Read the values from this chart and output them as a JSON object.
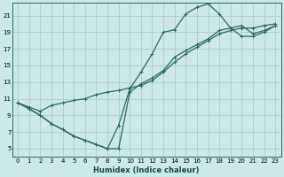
{
  "xlabel": "Humidex (Indice chaleur)",
  "bg_color": "#cce8e8",
  "grid_color": "#aacece",
  "line_color": "#2a6a5a",
  "xlim": [
    -0.5,
    23.5
  ],
  "ylim": [
    4.0,
    22.5
  ],
  "xticks": [
    0,
    1,
    2,
    3,
    4,
    5,
    6,
    7,
    8,
    9,
    10,
    11,
    12,
    13,
    14,
    15,
    16,
    17,
    18,
    19,
    20,
    21,
    22,
    23
  ],
  "yticks": [
    5,
    7,
    9,
    11,
    13,
    15,
    17,
    19,
    21
  ],
  "line1_x": [
    0,
    1,
    2,
    3,
    4,
    5,
    6,
    7,
    8,
    9,
    10,
    11,
    12,
    13,
    14,
    15,
    16,
    17,
    18,
    19,
    20,
    21,
    22,
    23
  ],
  "line1_y": [
    10.5,
    9.8,
    9.0,
    8.0,
    7.3,
    6.5,
    6.0,
    5.5,
    5.0,
    7.8,
    12.2,
    14.2,
    16.4,
    19.0,
    19.3,
    21.2,
    22.0,
    22.4,
    21.2,
    19.5,
    18.5,
    18.5,
    19.0,
    19.8
  ],
  "line2_x": [
    0,
    1,
    2,
    3,
    4,
    5,
    6,
    7,
    8,
    9,
    10,
    11,
    12,
    13,
    14,
    15,
    16,
    17,
    18,
    19,
    20,
    21,
    22,
    23
  ],
  "line2_y": [
    10.5,
    9.8,
    9.0,
    8.0,
    7.3,
    6.5,
    6.0,
    5.5,
    5.0,
    5.0,
    11.8,
    12.8,
    13.5,
    14.4,
    16.0,
    16.8,
    17.5,
    18.2,
    19.2,
    19.5,
    19.8,
    18.8,
    19.2,
    19.8
  ],
  "line3_x": [
    0,
    1,
    2,
    3,
    4,
    5,
    6,
    7,
    8,
    9,
    10,
    11,
    12,
    13,
    14,
    15,
    16,
    17,
    18,
    19,
    20,
    21,
    22,
    23
  ],
  "line3_y": [
    10.5,
    10.0,
    9.5,
    10.2,
    10.5,
    10.8,
    11.0,
    11.5,
    11.8,
    12.0,
    12.3,
    12.6,
    13.2,
    14.2,
    15.4,
    16.4,
    17.2,
    18.0,
    18.8,
    19.2,
    19.5,
    19.5,
    19.8,
    20.0
  ],
  "xlabel_fontsize": 6.0,
  "tick_fontsize": 5.0,
  "linewidth": 0.9,
  "marker_size": 2.2
}
